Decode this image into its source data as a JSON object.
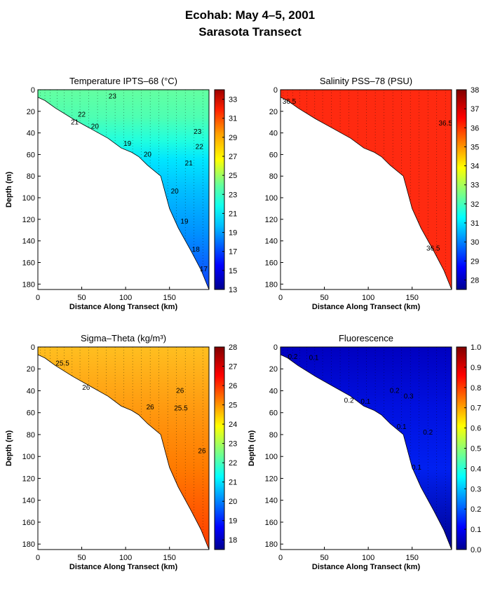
{
  "figure": {
    "title_line1": "Ecohab:  May 4–5, 2001",
    "title_line2": "Sarasota Transect"
  },
  "chart_data": [
    {
      "type": "heatmap",
      "id": "temperature",
      "title": "Temperature IPTS–68 (°C)",
      "xlabel": "Distance Along Transect (km)",
      "ylabel": "Depth (m)",
      "xlim": [
        0,
        195
      ],
      "ylim": [
        185,
        0
      ],
      "x_ticks": [
        0,
        50,
        100,
        150
      ],
      "y_ticks": [
        0,
        20,
        40,
        60,
        80,
        100,
        120,
        140,
        160,
        180
      ],
      "colorbar": {
        "min": 13,
        "max": 34,
        "ticks": [
          13,
          15,
          17,
          19,
          21,
          23,
          25,
          27,
          29,
          31,
          33
        ]
      },
      "contour_labels": [
        {
          "text": "23",
          "x": 85,
          "y": 8
        },
        {
          "text": "22",
          "x": 50,
          "y": 25
        },
        {
          "text": "21",
          "x": 42,
          "y": 32
        },
        {
          "text": "20",
          "x": 65,
          "y": 36
        },
        {
          "text": "23",
          "x": 182,
          "y": 41
        },
        {
          "text": "22",
          "x": 184,
          "y": 55
        },
        {
          "text": "19",
          "x": 102,
          "y": 52
        },
        {
          "text": "20",
          "x": 125,
          "y": 62
        },
        {
          "text": "21",
          "x": 172,
          "y": 70
        },
        {
          "text": "20",
          "x": 156,
          "y": 96
        },
        {
          "text": "19",
          "x": 167,
          "y": 124
        },
        {
          "text": "18",
          "x": 180,
          "y": 150
        },
        {
          "text": "17",
          "x": 189,
          "y": 168
        }
      ]
    },
    {
      "type": "heatmap",
      "id": "salinity",
      "title": "Salinity PSS–78 (PSU)",
      "xlabel": "Distance Along Transect (km)",
      "ylabel": "",
      "xlim": [
        0,
        195
      ],
      "ylim": [
        185,
        0
      ],
      "x_ticks": [
        0,
        50,
        100,
        150
      ],
      "y_ticks": [
        0,
        20,
        40,
        60,
        80,
        100,
        120,
        140,
        160,
        180
      ],
      "colorbar": {
        "min": 27.5,
        "max": 38,
        "ticks": [
          28,
          29,
          30,
          31,
          32,
          33,
          34,
          35,
          36,
          37,
          38
        ]
      },
      "contour_labels": [
        {
          "text": "36.5",
          "x": 10,
          "y": 13
        },
        {
          "text": "36.5",
          "x": 188,
          "y": 33
        },
        {
          "text": "36.5",
          "x": 174,
          "y": 149
        }
      ]
    },
    {
      "type": "heatmap",
      "id": "sigma_theta",
      "title": "Sigma–Theta (kg/m³)",
      "xlabel": "Distance Along Transect (km)",
      "ylabel": "Depth (m)",
      "xlim": [
        0,
        195
      ],
      "ylim": [
        185,
        0
      ],
      "x_ticks": [
        0,
        50,
        100,
        150
      ],
      "y_ticks": [
        0,
        20,
        40,
        60,
        80,
        100,
        120,
        140,
        160,
        180
      ],
      "colorbar": {
        "min": 17.5,
        "max": 28,
        "ticks": [
          18,
          19,
          20,
          21,
          22,
          23,
          24,
          25,
          26,
          27,
          28
        ]
      },
      "contour_labels": [
        {
          "text": "25.5",
          "x": 28,
          "y": 17
        },
        {
          "text": "26",
          "x": 55,
          "y": 39
        },
        {
          "text": "26",
          "x": 128,
          "y": 57
        },
        {
          "text": "26",
          "x": 162,
          "y": 42
        },
        {
          "text": "25.5",
          "x": 163,
          "y": 58
        },
        {
          "text": "26",
          "x": 187,
          "y": 97
        }
      ]
    },
    {
      "type": "heatmap",
      "id": "fluorescence",
      "title": "Fluorescence",
      "xlabel": "Distance Along Transect (km)",
      "ylabel": "Depth (m)",
      "xlim": [
        0,
        195
      ],
      "ylim": [
        185,
        0
      ],
      "x_ticks": [
        0,
        50,
        100,
        150
      ],
      "y_ticks": [
        0,
        20,
        40,
        60,
        80,
        100,
        120,
        140,
        160,
        180
      ],
      "colorbar": {
        "min": 0,
        "max": 1,
        "ticks": [
          "0.0",
          "0.1",
          "0.2",
          "0.3",
          "0.4",
          "0.5",
          "0.6",
          "0.7",
          "0.8",
          "0.9",
          "1.0"
        ]
      },
      "contour_labels": [
        {
          "text": "0.2",
          "x": 14,
          "y": 11
        },
        {
          "text": "0.1",
          "x": 38,
          "y": 12
        },
        {
          "text": "0.2",
          "x": 78,
          "y": 51
        },
        {
          "text": "0.1",
          "x": 97,
          "y": 52
        },
        {
          "text": "0.2",
          "x": 130,
          "y": 42
        },
        {
          "text": "0.3",
          "x": 146,
          "y": 47
        },
        {
          "text": "0.1",
          "x": 138,
          "y": 75
        },
        {
          "text": "0.2",
          "x": 168,
          "y": 80
        },
        {
          "text": "0.1",
          "x": 155,
          "y": 112
        }
      ]
    }
  ]
}
